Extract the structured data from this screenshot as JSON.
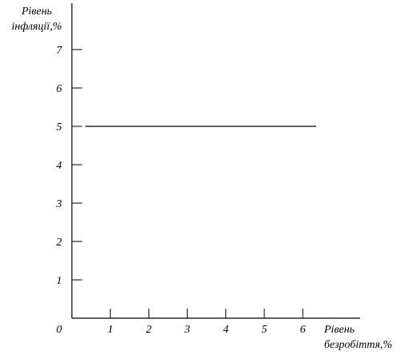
{
  "chart_data": {
    "type": "line",
    "title": "",
    "xlabel": [
      "Рівень",
      "безробіття,%"
    ],
    "ylabel": [
      "Рівень",
      "інфляції,%"
    ],
    "origin_label": "0",
    "x_ticks": [
      "1",
      "2",
      "3",
      "4",
      "5",
      "6"
    ],
    "y_ticks": [
      "1",
      "2",
      "3",
      "4",
      "5",
      "6",
      "7"
    ],
    "xlim": [
      0,
      7.5
    ],
    "ylim": [
      0,
      8
    ],
    "grid": false,
    "series": [
      {
        "x": [
          0.35,
          6.35
        ],
        "y": [
          5,
          5
        ]
      }
    ],
    "colors": {
      "axis": "#000000",
      "line": "#000000"
    }
  }
}
